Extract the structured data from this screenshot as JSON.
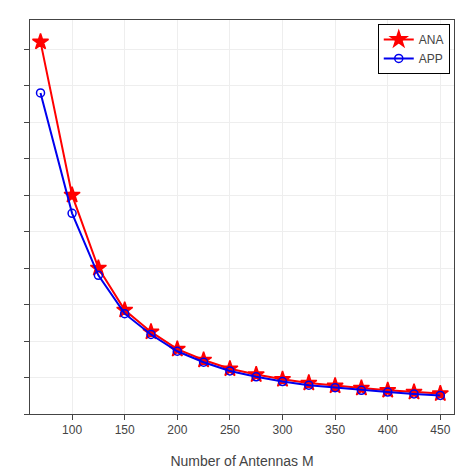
{
  "chart_data": {
    "type": "line",
    "x_label": "Number of Antennas M",
    "series": [
      {
        "name": "ANA",
        "color": "#ff0000",
        "marker": "star",
        "x": [
          70,
          100,
          125,
          150,
          175,
          200,
          225,
          250,
          275,
          300,
          325,
          350,
          375,
          400,
          425,
          450
        ],
        "values": [
          1.02,
          0.6,
          0.4,
          0.285,
          0.225,
          0.178,
          0.148,
          0.124,
          0.108,
          0.095,
          0.085,
          0.077,
          0.071,
          0.065,
          0.06,
          0.056
        ]
      },
      {
        "name": "APP",
        "color": "#0000ee",
        "marker": "open_circle",
        "x": [
          70,
          100,
          125,
          150,
          175,
          200,
          225,
          250,
          275,
          300,
          325,
          350,
          375,
          400,
          425,
          450
        ],
        "values": [
          0.88,
          0.55,
          0.38,
          0.275,
          0.218,
          0.172,
          0.142,
          0.118,
          0.102,
          0.089,
          0.079,
          0.072,
          0.065,
          0.06,
          0.055,
          0.051
        ]
      }
    ],
    "xlim": [
      60,
      463
    ],
    "ylim": [
      0,
      1.08
    ],
    "xticks": [
      100,
      150,
      200,
      250,
      300,
      350,
      400,
      450
    ],
    "yticks": [
      0.0,
      0.1,
      0.2,
      0.3,
      0.4,
      0.5,
      0.6,
      0.7,
      0.8,
      0.9,
      1.0
    ],
    "tick_labels": "x",
    "grid": true,
    "legend": "upper right"
  }
}
